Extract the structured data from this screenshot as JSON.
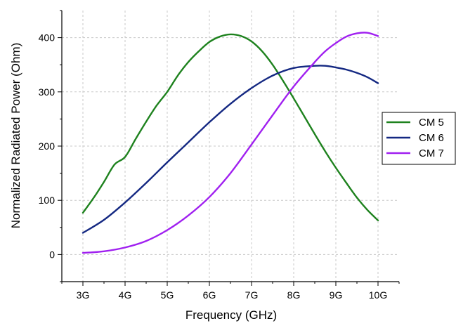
{
  "chart_data": {
    "type": "line",
    "title": "",
    "xlabel": "Frequency (GHz)",
    "ylabel": "Normalized Radiated Power (Ohm)",
    "xlim": [
      2.5,
      10.5
    ],
    "ylim": [
      -50,
      450
    ],
    "xticks": [
      3,
      4,
      5,
      6,
      7,
      8,
      9,
      10
    ],
    "xtick_labels": [
      "3G",
      "4G",
      "5G",
      "6G",
      "7G",
      "8G",
      "9G",
      "10G"
    ],
    "yticks": [
      0,
      100,
      200,
      300,
      400
    ],
    "ytick_labels": [
      "0",
      "100",
      "200",
      "300",
      "400"
    ],
    "grid": "dashed",
    "legend_position": "right",
    "series": [
      {
        "name": "CM 5",
        "color": "#1e821e",
        "x": [
          3,
          3.25,
          3.5,
          3.75,
          4,
          4.25,
          4.5,
          4.75,
          5,
          5.25,
          5.5,
          5.75,
          6,
          6.25,
          6.5,
          6.75,
          7,
          7.25,
          7.5,
          7.75,
          8,
          8.25,
          8.5,
          8.75,
          9,
          9.25,
          9.5,
          9.75,
          10
        ],
        "values": [
          77,
          104,
          134,
          166,
          180,
          213,
          245,
          275,
          300,
          330,
          355,
          375,
          392,
          402,
          406,
          403,
          393,
          375,
          350,
          320,
          288,
          255,
          222,
          190,
          160,
          132,
          105,
          82,
          63
        ]
      },
      {
        "name": "CM 6",
        "color": "#142882",
        "x": [
          3,
          3.5,
          4,
          4.5,
          5,
          5.5,
          6,
          6.5,
          7,
          7.5,
          8,
          8.5,
          8.75,
          9,
          9.25,
          9.5,
          9.75,
          10
        ],
        "values": [
          40,
          64,
          96,
          132,
          170,
          207,
          244,
          278,
          307,
          330,
          344,
          348,
          348,
          345,
          341,
          335,
          327,
          316
        ]
      },
      {
        "name": "CM 7",
        "color": "#a020f0",
        "x": [
          3,
          3.5,
          4,
          4.5,
          5,
          5.5,
          6,
          6.5,
          7,
          7.5,
          8,
          8.5,
          8.75,
          9,
          9.25,
          9.5,
          9.75,
          10
        ],
        "values": [
          3,
          6,
          13,
          25,
          45,
          72,
          106,
          150,
          203,
          257,
          310,
          355,
          375,
          390,
          402,
          408,
          409,
          403
        ]
      }
    ]
  }
}
